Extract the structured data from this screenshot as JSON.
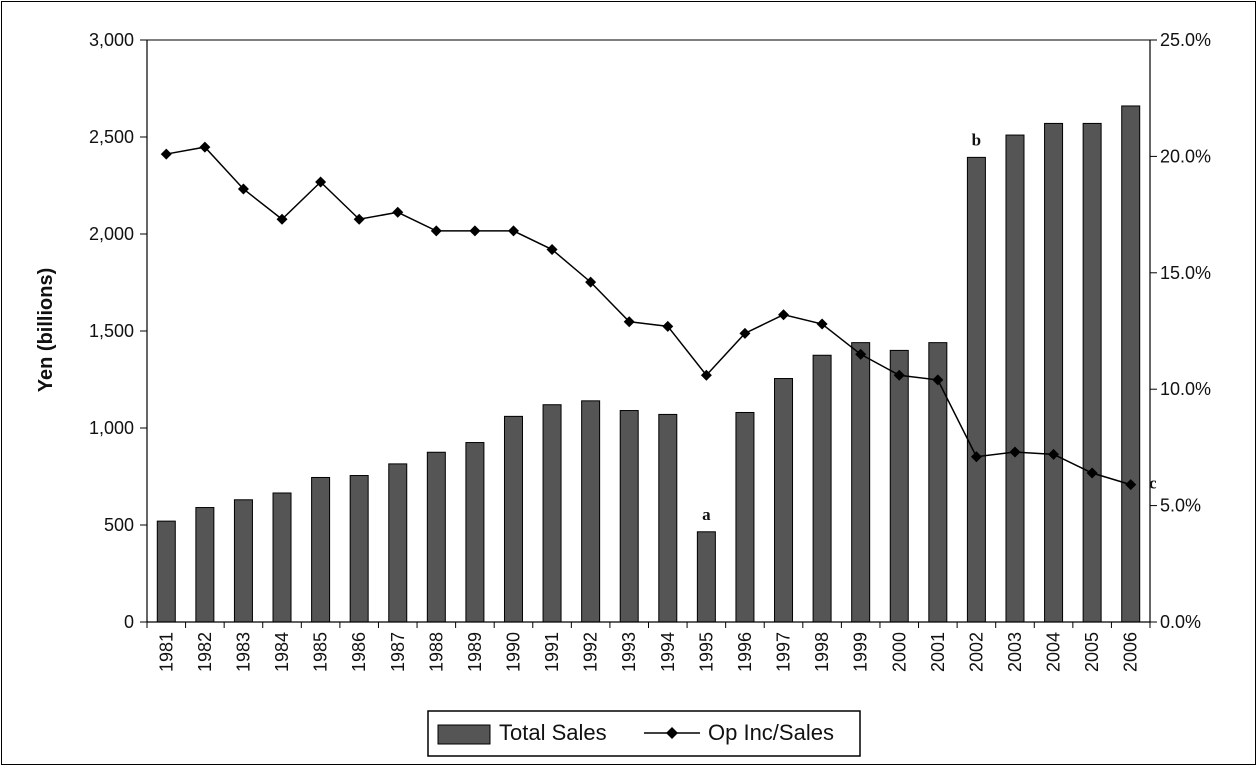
{
  "chart_data": {
    "type": "bar",
    "title": "",
    "ylabel": "Yen (billions)",
    "y2label": "",
    "categories": [
      "1981",
      "1982",
      "1983",
      "1984",
      "1985",
      "1986",
      "1987",
      "1988",
      "1989",
      "1990",
      "1991",
      "1992",
      "1993",
      "1994",
      "1995",
      "1996",
      "1997",
      "1998",
      "1999",
      "2000",
      "2001",
      "2002",
      "2003",
      "2004",
      "2005",
      "2006"
    ],
    "ylim": [
      0,
      3000
    ],
    "y2lim": [
      0,
      25
    ],
    "yticks": [
      "0",
      "500",
      "1,000",
      "1,500",
      "2,000",
      "2,500",
      "3,000"
    ],
    "y2ticks": [
      "0.0%",
      "5.0%",
      "10.0%",
      "15.0%",
      "20.0%",
      "25.0%"
    ],
    "grid": false,
    "legend_position": "bottom",
    "bar_color": "#555555",
    "line_color": "#000000",
    "series": [
      {
        "name": "Total Sales",
        "type": "bar",
        "axis": "left",
        "values": [
          520,
          590,
          630,
          665,
          745,
          755,
          815,
          875,
          925,
          1060,
          1120,
          1140,
          1090,
          1070,
          465,
          1080,
          1255,
          1375,
          1440,
          1400,
          1440,
          2395,
          2510,
          2570,
          2570,
          2660
        ]
      },
      {
        "name": "Op Inc/Sales",
        "type": "line",
        "axis": "right",
        "values": [
          20.1,
          20.4,
          18.6,
          17.3,
          18.9,
          17.3,
          17.6,
          16.8,
          16.8,
          16.8,
          16.0,
          14.6,
          12.9,
          12.7,
          10.6,
          12.4,
          13.2,
          12.8,
          11.5,
          10.6,
          10.4,
          7.1,
          7.3,
          7.2,
          6.4,
          5.9
        ]
      }
    ],
    "annotations": [
      {
        "text": "a",
        "category": "1995"
      },
      {
        "text": "b",
        "category": "2002"
      },
      {
        "text": "c",
        "category": "2006"
      }
    ]
  }
}
